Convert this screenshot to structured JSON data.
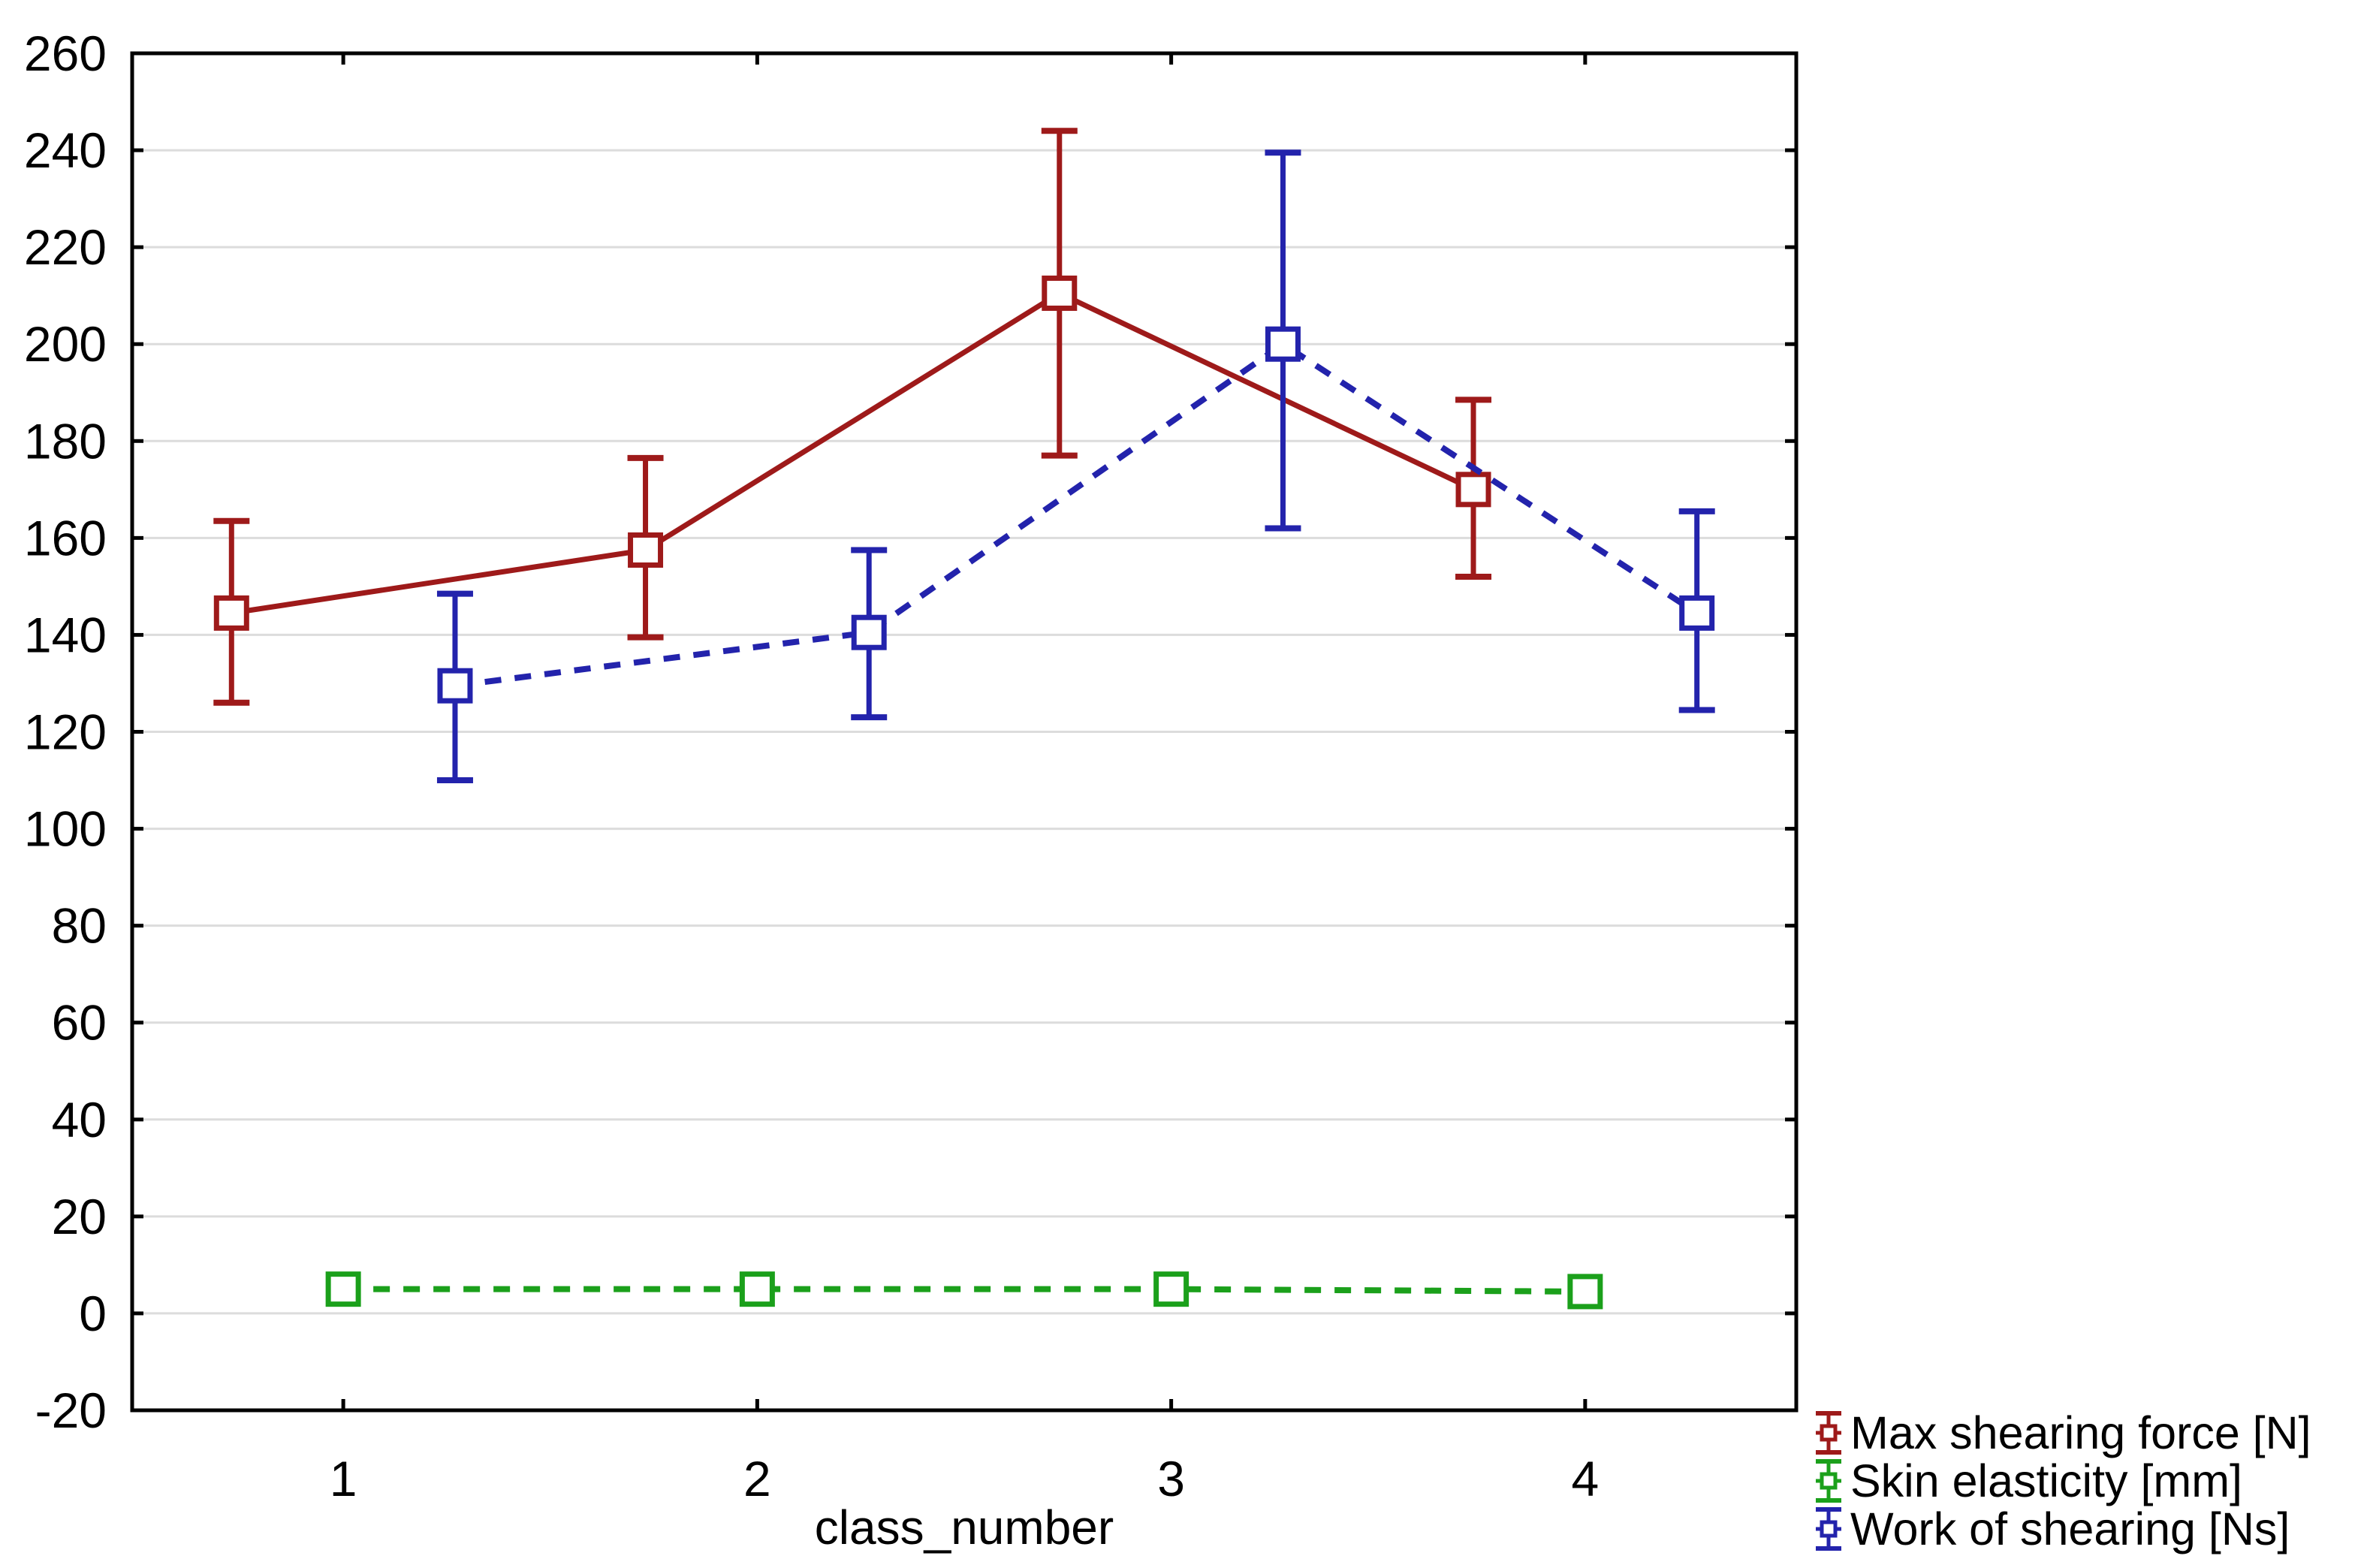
{
  "chart_data": {
    "type": "line",
    "title": "",
    "xlabel": "class_number",
    "ylabel": "",
    "x_ticks": [
      1,
      2,
      3,
      4
    ],
    "y_ticks": [
      -20,
      0,
      20,
      40,
      60,
      80,
      100,
      120,
      140,
      160,
      180,
      200,
      220,
      240,
      260
    ],
    "xlim": [
      0.49,
      4.51
    ],
    "ylim": [
      -20,
      260
    ],
    "grid": "horizontal",
    "gridline_color": "#DCDCDC",
    "axis_color": "#000000",
    "legend_position": "outside-bottom-right",
    "categories": [
      1,
      2,
      3,
      4
    ],
    "series": [
      {
        "name": "Max shearing force [N]",
        "color": "#9E1A1A",
        "line_style": "solid",
        "marker": "open-square",
        "x_offset": -0.27,
        "values": [
          144.5,
          157.5,
          210.5,
          170
        ],
        "err_low": [
          126,
          139.5,
          177,
          152
        ],
        "err_high": [
          163.5,
          176.5,
          244,
          188.5
        ]
      },
      {
        "name": "Skin elasticity [mm]",
        "color": "#1BA01B",
        "line_style": "dashed",
        "marker": "open-square",
        "x_offset": 0,
        "values": [
          5,
          5,
          5,
          4.5
        ],
        "err_low": null,
        "err_high": null
      },
      {
        "name": "Work of shearing [Ns]",
        "color": "#2323AC",
        "line_style": "dashed",
        "marker": "open-square",
        "x_offset": 0.27,
        "values": [
          129.5,
          140.5,
          200,
          144.5
        ],
        "err_low": [
          110,
          123,
          162,
          124.5
        ],
        "err_high": [
          148.5,
          157.5,
          239.5,
          165.5
        ]
      }
    ]
  }
}
